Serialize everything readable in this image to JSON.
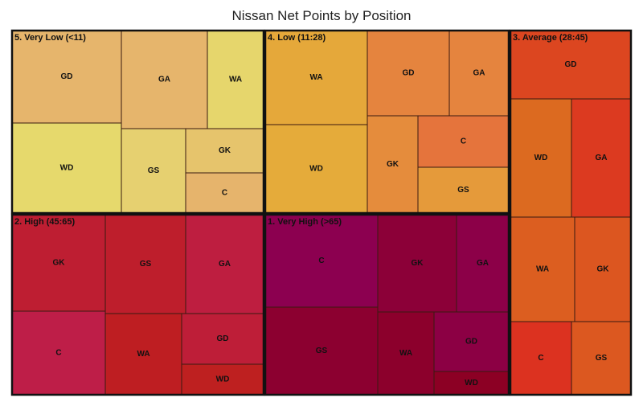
{
  "chart_data": {
    "type": "treemap",
    "title": "Nissan Net Points by Position",
    "groups": [
      {
        "label": "5. Very Low (<11)",
        "cells": [
          {
            "label": "GD",
            "color": "#e6b56c"
          },
          {
            "label": "GA",
            "color": "#e6b56c"
          },
          {
            "label": "WA",
            "color": "#e6d66c"
          },
          {
            "label": "WD",
            "color": "#e6d96c"
          },
          {
            "label": "GS",
            "color": "#e6d070"
          },
          {
            "label": "GK",
            "color": "#e6c46c"
          },
          {
            "label": "C",
            "color": "#e6b46c"
          }
        ]
      },
      {
        "label": "4. Low (11:28)",
        "cells": [
          {
            "label": "WA",
            "color": "#e5a83a"
          },
          {
            "label": "GD",
            "color": "#e5843e"
          },
          {
            "label": "GA",
            "color": "#e5843e"
          },
          {
            "label": "WD",
            "color": "#e5ab3a"
          },
          {
            "label": "GK",
            "color": "#e58c3c"
          },
          {
            "label": "C",
            "color": "#e5743c"
          },
          {
            "label": "GS",
            "color": "#e59a3a"
          }
        ]
      },
      {
        "label": "3. Average (28:45)",
        "cells": [
          {
            "label": "GD",
            "color": "#dc4620"
          },
          {
            "label": "WD",
            "color": "#dc6a20"
          },
          {
            "label": "GA",
            "color": "#dc3a20"
          },
          {
            "label": "WA",
            "color": "#dc5e20"
          },
          {
            "label": "GK",
            "color": "#dc5620"
          },
          {
            "label": "C",
            "color": "#dc3220"
          },
          {
            "label": "GS",
            "color": "#dc5820"
          }
        ]
      },
      {
        "label": "2. High (45:65)",
        "cells": [
          {
            "label": "GK",
            "color": "#be1e32"
          },
          {
            "label": "GS",
            "color": "#be1e2c"
          },
          {
            "label": "GA",
            "color": "#be1e40"
          },
          {
            "label": "C",
            "color": "#be1e48"
          },
          {
            "label": "WA",
            "color": "#be1e22"
          },
          {
            "label": "GD",
            "color": "#be1e38"
          },
          {
            "label": "WD",
            "color": "#be2020"
          }
        ]
      },
      {
        "label": "1. Very High (>65)",
        "cells": [
          {
            "label": "C",
            "color": "#8c0050"
          },
          {
            "label": "GK",
            "color": "#8c0038"
          },
          {
            "label": "GA",
            "color": "#8c0048"
          },
          {
            "label": "GS",
            "color": "#8c0030"
          },
          {
            "label": "WA",
            "color": "#8c002c"
          },
          {
            "label": "GD",
            "color": "#8c0044"
          },
          {
            "label": "WD",
            "color": "#8c0024"
          }
        ]
      }
    ]
  }
}
